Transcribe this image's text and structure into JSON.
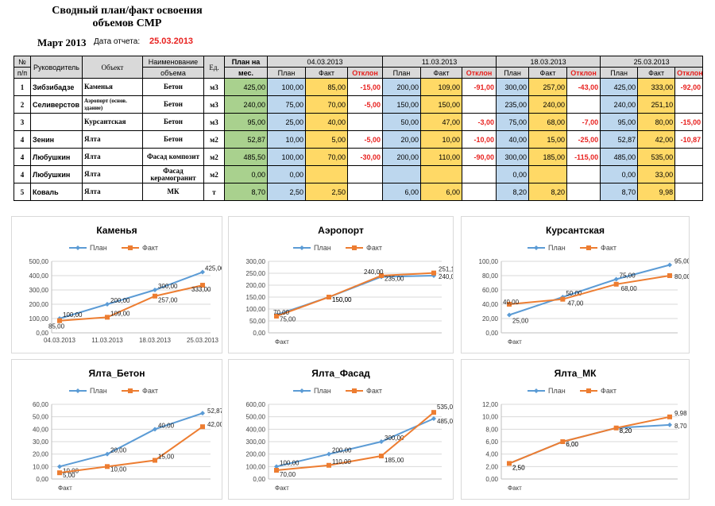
{
  "header": {
    "title_line1": "Сводный план/факт освоения",
    "title_line2": "объемов СМР",
    "month": "Март 2013",
    "date_label": "Дата отчета:",
    "date_value": "25.03.2013"
  },
  "table": {
    "col_headers": {
      "num_top": "№",
      "num_bottom": "п/п",
      "manager": "Руководитель",
      "object": "Объект",
      "name_top": "Наименование",
      "name_bottom": "объема",
      "unit": "Ед.",
      "plan_month_top": "План на",
      "plan_month_bottom": "мес."
    },
    "dates": [
      "04.03.2013",
      "11.03.2013",
      "18.03.2013",
      "25.03.2013"
    ],
    "sub_headers": {
      "plan": "План",
      "fact": "Факт",
      "dev": "Отклон"
    },
    "rows": [
      {
        "num": "1",
        "manager": "Зибзибадзе",
        "object": "Каменья",
        "name": "Бетон",
        "unit": "м3",
        "plan_month": "425,00",
        "weeks": [
          [
            "100,00",
            "85,00",
            "-15,00"
          ],
          [
            "200,00",
            "109,00",
            "-91,00"
          ],
          [
            "300,00",
            "257,00",
            "-43,00"
          ],
          [
            "425,00",
            "333,00",
            "-92,00"
          ]
        ]
      },
      {
        "num": "2",
        "manager": "Селиверстов",
        "object": "Аэропорт (основ. здание)",
        "name": "Бетон",
        "unit": "м3",
        "plan_month": "240,00",
        "weeks": [
          [
            "75,00",
            "70,00",
            "-5,00"
          ],
          [
            "150,00",
            "150,00",
            ""
          ],
          [
            "235,00",
            "240,00",
            ""
          ],
          [
            "240,00",
            "251,10",
            ""
          ]
        ]
      },
      {
        "num": "3",
        "manager": "",
        "object": "Курсантская",
        "name": "Бетон",
        "unit": "м3",
        "plan_month": "95,00",
        "weeks": [
          [
            "25,00",
            "40,00",
            ""
          ],
          [
            "50,00",
            "47,00",
            "-3,00"
          ],
          [
            "75,00",
            "68,00",
            "-7,00"
          ],
          [
            "95,00",
            "80,00",
            "-15,00"
          ]
        ]
      },
      {
        "num": "4",
        "manager": "Зенин",
        "object": "Ялта",
        "name": "Бетон",
        "unit": "м2",
        "plan_month": "52,87",
        "weeks": [
          [
            "10,00",
            "5,00",
            "-5,00"
          ],
          [
            "20,00",
            "10,00",
            "-10,00"
          ],
          [
            "40,00",
            "15,00",
            "-25,00"
          ],
          [
            "52,87",
            "42,00",
            "-10,87"
          ]
        ]
      },
      {
        "num": "4",
        "manager": "Любушкин",
        "object": "Ялта",
        "name": "Фасад композит",
        "unit": "м2",
        "plan_month": "485,50",
        "weeks": [
          [
            "100,00",
            "70,00",
            "-30,00"
          ],
          [
            "200,00",
            "110,00",
            "-90,00"
          ],
          [
            "300,00",
            "185,00",
            "-115,00"
          ],
          [
            "485,00",
            "535,00",
            ""
          ]
        ]
      },
      {
        "num": "4",
        "manager": "Любушкин",
        "object": "Ялта",
        "name": "Фасад керамогранит",
        "unit": "м2",
        "plan_month": "0,00",
        "weeks": [
          [
            "0,00",
            "",
            ""
          ],
          [
            "",
            "",
            ""
          ],
          [
            "0,00",
            "",
            ""
          ],
          [
            "0,00",
            "33,00",
            ""
          ]
        ]
      },
      {
        "num": "5",
        "manager": "Коваль",
        "object": "Ялта",
        "name": "МК",
        "unit": "т",
        "plan_month": "8,70",
        "weeks": [
          [
            "2,50",
            "2,50",
            ""
          ],
          [
            "6,00",
            "6,00",
            ""
          ],
          [
            "8,20",
            "8,20",
            ""
          ],
          [
            "8,70",
            "9,98",
            ""
          ]
        ]
      }
    ]
  },
  "colors": {
    "plan": "#5b9bd5",
    "fact": "#ed7d31",
    "red": "#e8211f",
    "green": "#a9d18e",
    "blue": "#bdd7ee",
    "yellow": "#ffd966"
  },
  "legend": {
    "plan": "План",
    "fact": "Факт"
  },
  "chart_data": [
    {
      "type": "line",
      "title": "Каменья",
      "categories": [
        "04.03.2013",
        "11.03.2013",
        "18.03.2013",
        "25.03.2013"
      ],
      "series": [
        {
          "name": "План",
          "values": [
            100,
            200,
            300,
            425
          ]
        },
        {
          "name": "Факт",
          "values": [
            85,
            109,
            257,
            333
          ]
        }
      ],
      "ylim": [
        0,
        500
      ],
      "yticks": [
        "0,00",
        "100,00",
        "200,00",
        "300,00",
        "400,00",
        "500,00"
      ],
      "xlabel": "",
      "labels": {
        "plan": [
          "100,00",
          "200,00",
          "300,00",
          "425,00"
        ],
        "fact": [
          "85,00",
          "109,00",
          "257,00",
          "333,00"
        ]
      }
    },
    {
      "type": "line",
      "title": "Аэропорт",
      "categories": [
        "",
        "",
        "",
        ""
      ],
      "series": [
        {
          "name": "План",
          "values": [
            75,
            150,
            235,
            240
          ]
        },
        {
          "name": "Факт",
          "values": [
            70,
            150,
            240,
            251.1
          ]
        }
      ],
      "ylim": [
        0,
        300
      ],
      "yticks": [
        "0,00",
        "50,00",
        "100,00",
        "150,00",
        "200,00",
        "250,00",
        "300,00"
      ],
      "xlabel": "Факт",
      "labels": {
        "plan": [
          "75,00",
          "150,00",
          "235,00",
          "240,00"
        ],
        "fact": [
          "70,00",
          "150,00",
          "240,00",
          "251,10"
        ]
      }
    },
    {
      "type": "line",
      "title": "Курсантская",
      "categories": [
        "",
        "",
        "",
        ""
      ],
      "series": [
        {
          "name": "План",
          "values": [
            25,
            50,
            75,
            95
          ]
        },
        {
          "name": "Факт",
          "values": [
            40,
            47,
            68,
            80
          ]
        }
      ],
      "ylim": [
        0,
        100
      ],
      "yticks": [
        "0,00",
        "20,00",
        "40,00",
        "60,00",
        "80,00",
        "100,00"
      ],
      "xlabel": "Факт",
      "labels": {
        "plan": [
          "25,00",
          "50,00",
          "75,00",
          "95,00"
        ],
        "fact": [
          "40,00",
          "47,00",
          "68,00",
          "80,00"
        ]
      }
    },
    {
      "type": "line",
      "title": "Ялта_Бетон",
      "categories": [
        "",
        "",
        "",
        ""
      ],
      "series": [
        {
          "name": "План",
          "values": [
            10,
            20,
            40,
            52.87
          ]
        },
        {
          "name": "Факт",
          "values": [
            5,
            10,
            15,
            42
          ]
        }
      ],
      "ylim": [
        0,
        60
      ],
      "yticks": [
        "0,00",
        "10,00",
        "20,00",
        "30,00",
        "40,00",
        "50,00",
        "60,00"
      ],
      "xlabel": "Факт",
      "labels": {
        "plan": [
          "10,00",
          "20,00",
          "40,00",
          "52,87"
        ],
        "fact": [
          "5,00",
          "10,00",
          "15,00",
          "42,00"
        ]
      }
    },
    {
      "type": "line",
      "title": "Ялта_Фасад",
      "categories": [
        "",
        "",
        "",
        ""
      ],
      "series": [
        {
          "name": "План",
          "values": [
            100,
            200,
            300,
            485
          ]
        },
        {
          "name": "Факт",
          "values": [
            70,
            110,
            185,
            535
          ]
        }
      ],
      "ylim": [
        0,
        600
      ],
      "yticks": [
        "0,00",
        "100,00",
        "200,00",
        "300,00",
        "400,00",
        "500,00",
        "600,00"
      ],
      "xlabel": "Факт",
      "labels": {
        "plan": [
          "100,00",
          "200,00",
          "300,00",
          "485,00"
        ],
        "fact": [
          "70,00",
          "110,00",
          "185,00",
          "535,00"
        ]
      }
    },
    {
      "type": "line",
      "title": "Ялта_МК",
      "categories": [
        "",
        "",
        "",
        ""
      ],
      "series": [
        {
          "name": "План",
          "values": [
            2.5,
            6,
            8.2,
            8.7
          ]
        },
        {
          "name": "Факт",
          "values": [
            2.5,
            6,
            8.2,
            9.98
          ]
        }
      ],
      "ylim": [
        0,
        12
      ],
      "yticks": [
        "0,00",
        "2,00",
        "4,00",
        "6,00",
        "8,00",
        "10,00",
        "12,00"
      ],
      "xlabel": "Факт",
      "labels": {
        "plan": [
          "2,50",
          "6,00",
          "8,20",
          "8,70"
        ],
        "fact": [
          "2,50",
          "6,00",
          "8,20",
          "9,98"
        ]
      }
    }
  ]
}
